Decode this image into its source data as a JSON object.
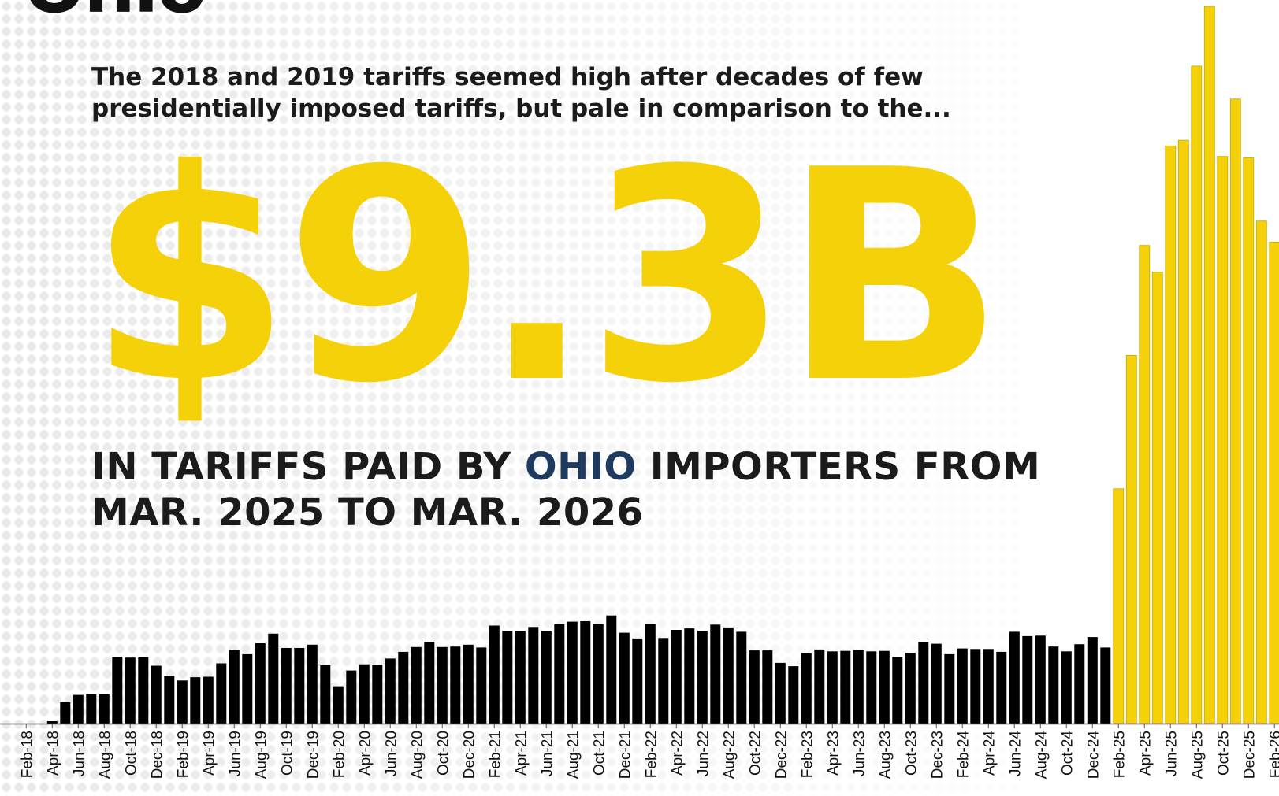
{
  "header": {
    "state_title": "Ohio",
    "intro": "The 2018 and 2019 tariffs seemed high after decades of few presidentially imposed tariffs, but pale in comparison to the...",
    "big_number": "$9.3B",
    "headline_before": "IN TARIFFS PAID BY ",
    "headline_state": "OHIO",
    "headline_after": " IMPORTERS FROM MAR. 2025 TO MAR. 2026"
  },
  "colors": {
    "accent": "#f5d10a",
    "baseline_bars": "#000000",
    "state_name": "#1f3a5f",
    "text": "#1b1b1b"
  },
  "chart_data": {
    "type": "bar",
    "title": "",
    "xlabel": "",
    "ylabel": "",
    "ylim": [
      0,
      1500
    ],
    "grid": false,
    "tick_labels": [
      "Feb-18",
      "Apr-18",
      "Jun-18",
      "Aug-18",
      "Oct-18",
      "Dec-18",
      "Feb-19",
      "Apr-19",
      "Jun-19",
      "Aug-19",
      "Oct-19",
      "Dec-19",
      "Feb-20",
      "Apr-20",
      "Jun-20",
      "Aug-20",
      "Oct-20",
      "Dec-20",
      "Feb-21",
      "Apr-21",
      "Jun-21",
      "Aug-21",
      "Oct-21",
      "Dec-21",
      "Feb-22",
      "Apr-22",
      "Jun-22",
      "Aug-22",
      "Oct-22",
      "Dec-22",
      "Feb-23",
      "Apr-23",
      "Jun-23",
      "Aug-23",
      "Oct-23",
      "Dec-23",
      "Feb-24",
      "Apr-24",
      "Jun-24",
      "Aug-24",
      "Oct-24",
      "Dec-24",
      "Feb-25",
      "Apr-25",
      "Jun-25",
      "Aug-25",
      "Oct-25",
      "Dec-25",
      "Feb-26"
    ],
    "series": [
      {
        "color": "#000000",
        "values": [
          0,
          0,
          0,
          5,
          45,
          60,
          62,
          61,
          140,
          138,
          139,
          121,
          100,
          90,
          97,
          98,
          126,
          154,
          145,
          168,
          188,
          158,
          158,
          165,
          122,
          78,
          111,
          124,
          123,
          136,
          150,
          160,
          171,
          160,
          161,
          165,
          159,
          205,
          194,
          194,
          202,
          194,
          208,
          213,
          214,
          208,
          226,
          190,
          178,
          209,
          179,
          196,
          199,
          194,
          207,
          201,
          192,
          153,
          153,
          127,
          120,
          147,
          155,
          151,
          152,
          154,
          151,
          152,
          140,
          148,
          171,
          167,
          145,
          157,
          156,
          156,
          150,
          192,
          183,
          184,
          161,
          151,
          166,
          181,
          159
        ],
        "start_month": "Jan-18"
      },
      {
        "color": "#f5d10a",
        "values": [
          491,
          770,
          1000,
          944,
          1208,
          1220,
          1375,
          1500,
          1186,
          1306,
          1183,
          1051,
          1007
        ],
        "start_month": "Feb-25"
      }
    ]
  }
}
